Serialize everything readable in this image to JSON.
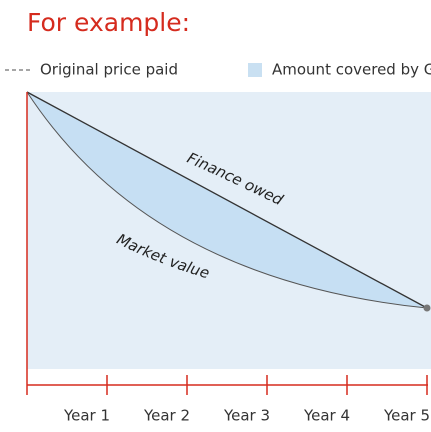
{
  "title": "For example:",
  "legend": {
    "items": [
      {
        "label": "Original price paid"
      },
      {
        "label": "Amount covered by GAP"
      }
    ]
  },
  "curves": {
    "finance": "Finance owed",
    "market": "Market value"
  },
  "x_labels": [
    "Year 1",
    "Year 2",
    "Year 3",
    "Year 4",
    "Year 5"
  ]
}
